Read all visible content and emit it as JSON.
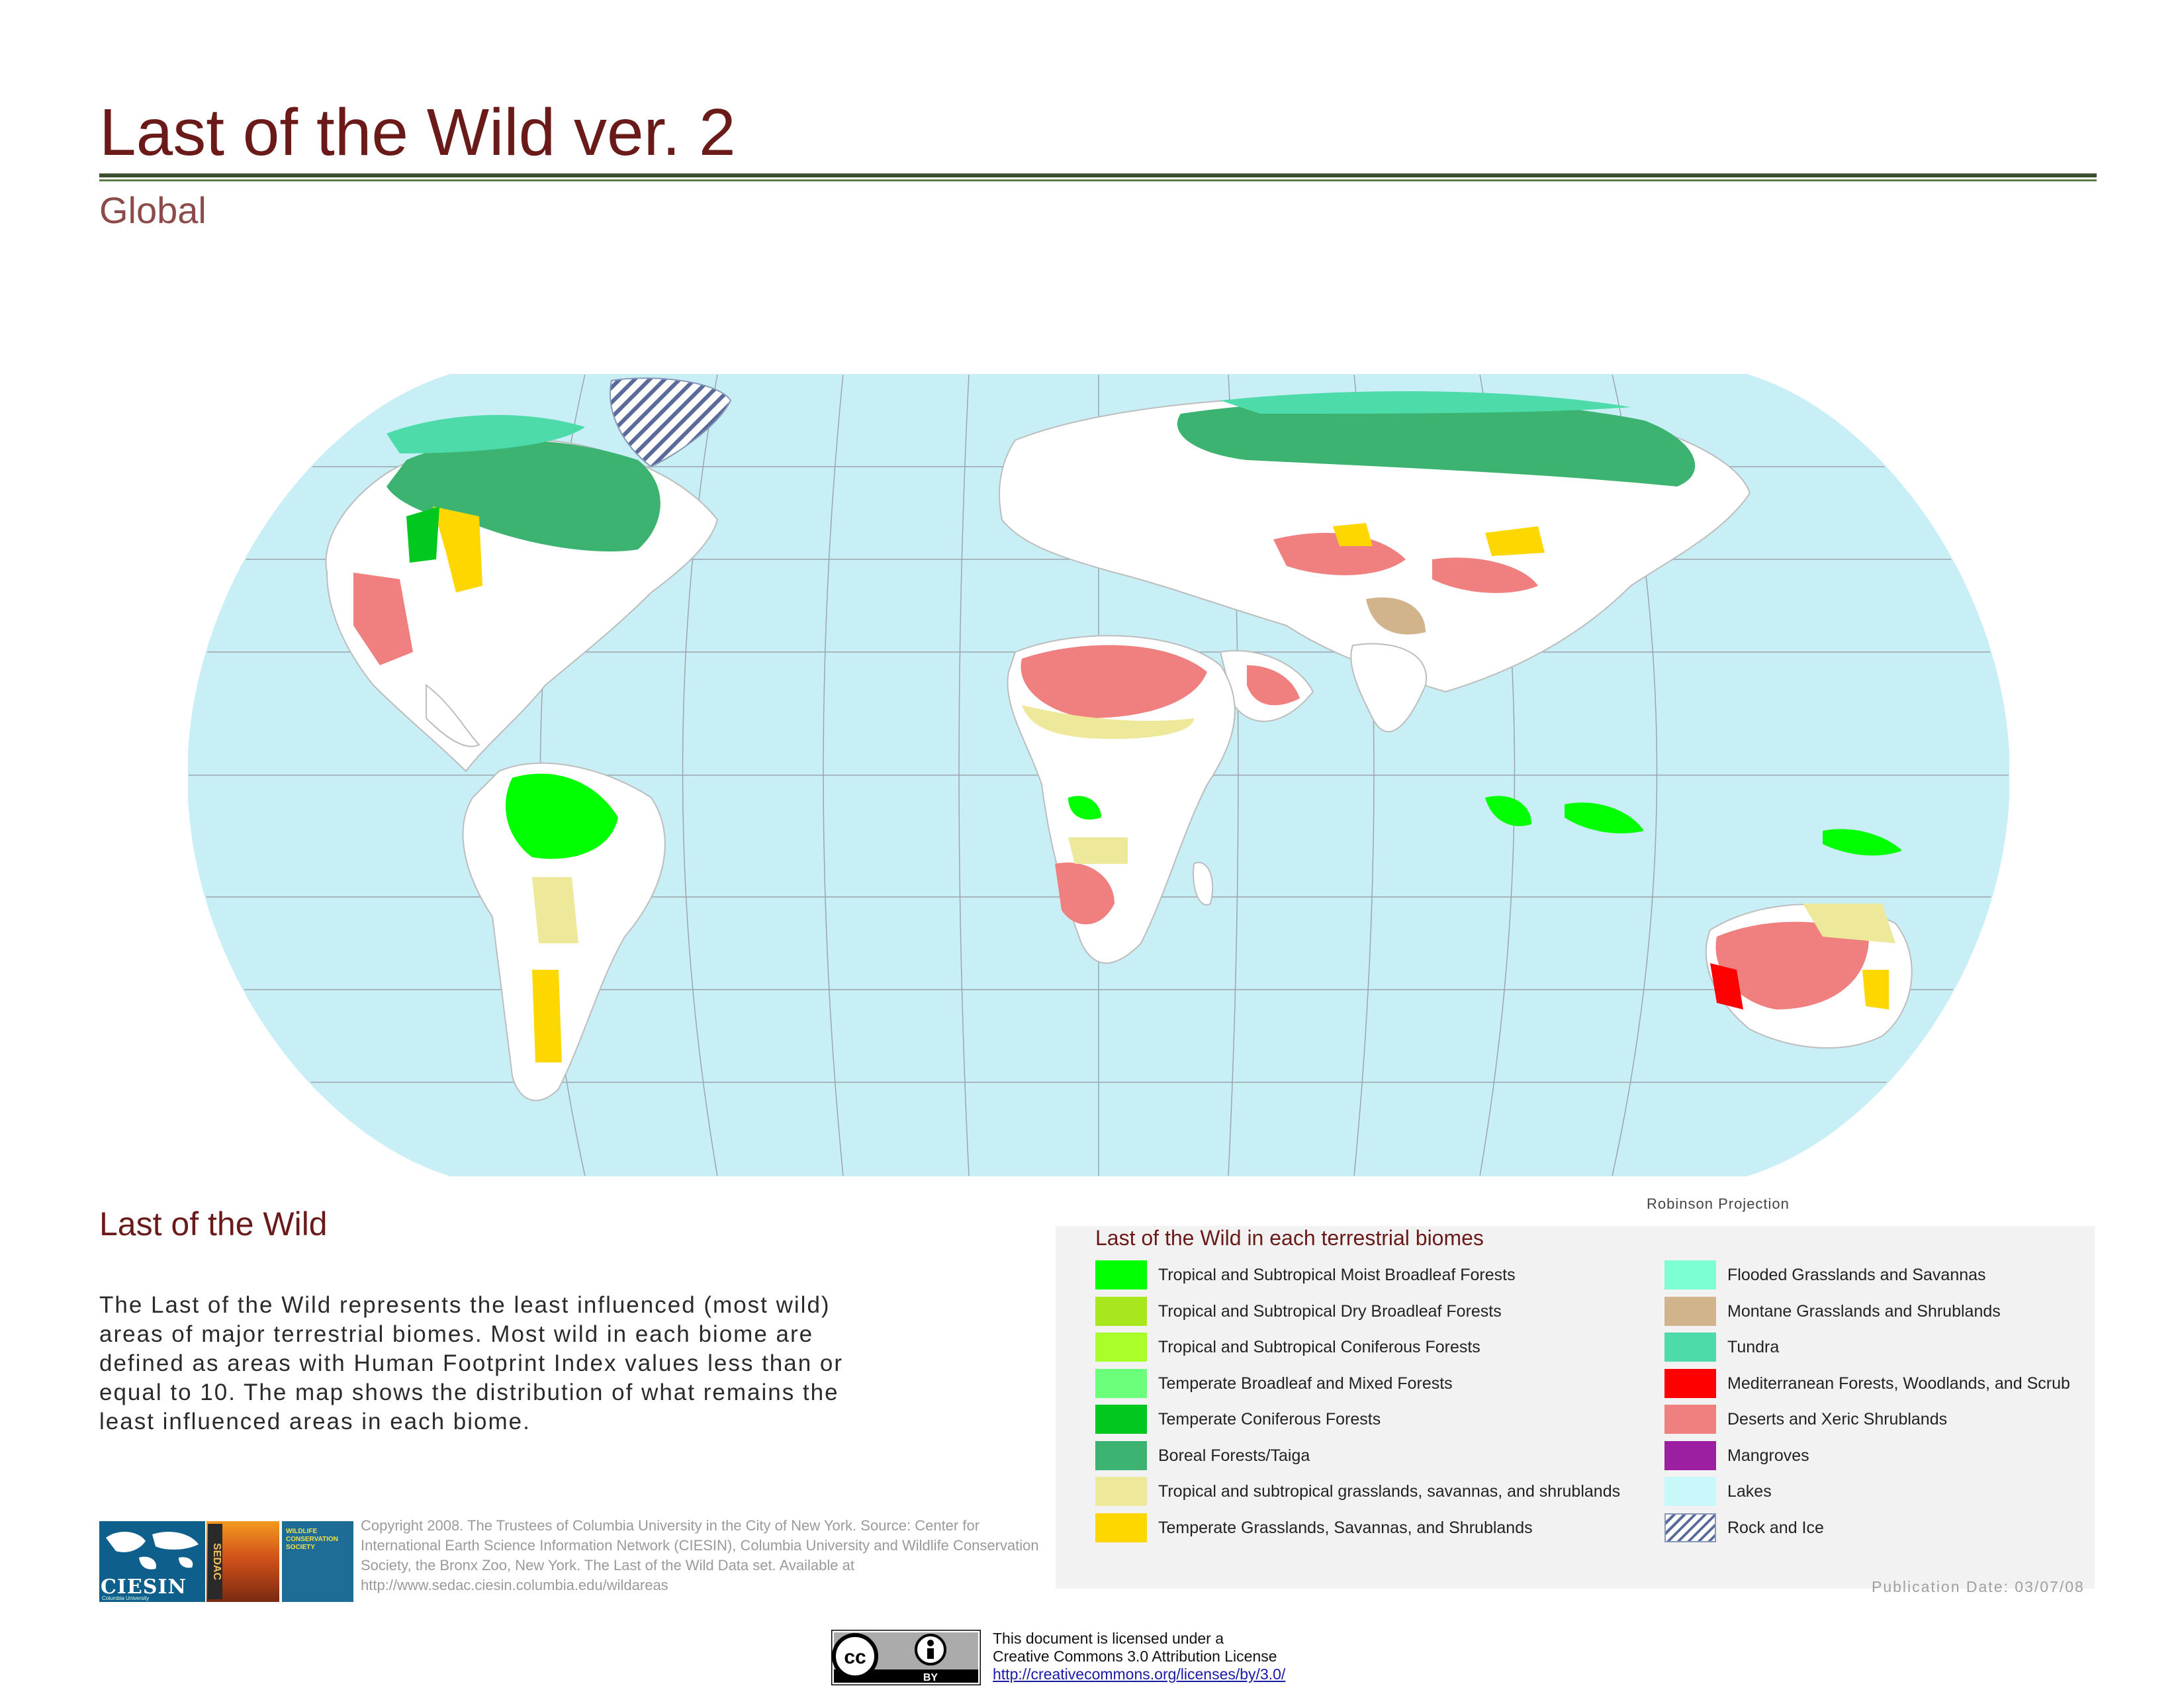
{
  "header": {
    "title": "Last of the Wild ver. 2",
    "subtitle": "Global"
  },
  "map": {
    "projection_label": "Robinson Projection",
    "ocean_color": "#c8eef6",
    "land_color": "#ffffff",
    "border_color": "#bdbdbd"
  },
  "section": {
    "heading": "Last of the Wild",
    "description": "The Last of the Wild represents the least influenced (most wild) areas of major terrestrial biomes. Most wild  in each biome are defined as areas with Human Footprint Index  values less than or equal to 10. The map shows the distribution of what remains the least influenced areas in each biome."
  },
  "logos": {
    "ciesin": "CIESIN",
    "ciesin_sub": "Columbia University",
    "sedac": "SEDAC",
    "wcs": "WILDLIFE CONSERVATION SOCIETY"
  },
  "copyright": {
    "text": "Copyright 2008. The Trustees of Columbia University in the City of New York. Source: Center for International Earth Science Information Network (CIESIN), Columbia University  and Wildlife Conservation Society, the Bronx Zoo, New York. The Last of the Wild Data set. Available at http://www.sedac.ciesin.columbia.edu/wildareas"
  },
  "legend": {
    "title": "Last of the Wild in each terrestrial biomes",
    "items": [
      {
        "label": "Tropical and Subtropical Moist Broadleaf Forests",
        "color": "#00ff00"
      },
      {
        "label": "Tropical and Subtropical Dry Broadleaf Forests",
        "color": "#a8e61d"
      },
      {
        "label": "Tropical and Subtropical Coniferous Forests",
        "color": "#aaff2a"
      },
      {
        "label": "Temperate Broadleaf and Mixed Forests",
        "color": "#6cff7c"
      },
      {
        "label": "Temperate Coniferous Forests",
        "color": "#00c81e"
      },
      {
        "label": "Boreal Forests/Taiga",
        "color": "#3cb371"
      },
      {
        "label": "Tropical and subtropical grasslands, savannas, and shrublands",
        "color": "#ede89a"
      },
      {
        "label": "Temperate Grasslands, Savannas, and Shrublands",
        "color": "#ffd700"
      },
      {
        "label": "Flooded Grasslands and Savannas",
        "color": "#7dffd4"
      },
      {
        "label": "Montane Grasslands and Shrublands",
        "color": "#d2b48c"
      },
      {
        "label": "Tundra",
        "color": "#4ddbaa"
      },
      {
        "label": "Mediterranean Forests, Woodlands, and Scrub",
        "color": "#ff0000"
      },
      {
        "label": "Deserts and Xeric Shrublands",
        "color": "#f08080"
      },
      {
        "label": "Mangroves",
        "color": "#9b1fa0"
      },
      {
        "label": "Lakes",
        "color": "#c8f8fa"
      },
      {
        "label": "Rock and Ice",
        "color": "hatch"
      }
    ],
    "publication_date": "Publication Date: 03/07/08"
  },
  "license": {
    "badge_cc": "cc",
    "badge_by": "BY",
    "line1": "This document is licensed under a",
    "line2": "Creative Commons 3.0 Attribution License",
    "url": "http://creativecommons.org/licenses/by/3.0/"
  }
}
